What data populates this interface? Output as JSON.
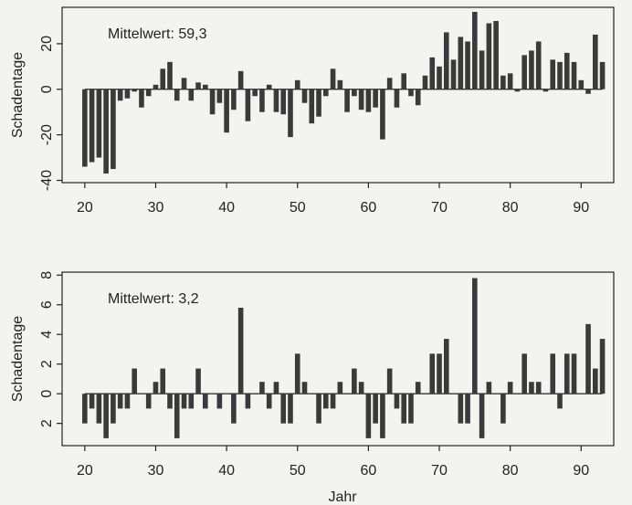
{
  "chart_data": [
    {
      "type": "bar",
      "annotation": "Mittelwert: 59,3",
      "ylabel": "Schadentage",
      "color": "#3a3a3a",
      "x": [
        20,
        21,
        22,
        23,
        24,
        25,
        26,
        27,
        28,
        29,
        30,
        31,
        32,
        33,
        34,
        35,
        36,
        37,
        38,
        39,
        40,
        41,
        42,
        43,
        44,
        45,
        46,
        47,
        48,
        49,
        50,
        51,
        52,
        53,
        54,
        55,
        56,
        57,
        58,
        59,
        60,
        61,
        62,
        63,
        64,
        65,
        66,
        67,
        68,
        69,
        70,
        71,
        72,
        73,
        74,
        75,
        76,
        77,
        78,
        79,
        80,
        81,
        82,
        83,
        84,
        85,
        86,
        87,
        88,
        89,
        90,
        91,
        92,
        93
      ],
      "values": [
        -34,
        -32,
        -30,
        -37,
        -35,
        -5,
        -4,
        -1,
        -8,
        -3,
        2,
        9,
        12,
        -5,
        5,
        -5,
        3,
        2,
        -11,
        -6,
        -19,
        -9,
        8,
        -14,
        -3,
        -10,
        2,
        -10,
        -11,
        -21,
        4,
        -6,
        -15,
        -12,
        -3,
        9,
        4,
        -10,
        -3,
        -9,
        -10,
        -8,
        -22,
        5,
        -8,
        7,
        -3,
        -7,
        6,
        14,
        10,
        25,
        13,
        23,
        21,
        34,
        17,
        29,
        30,
        6,
        7,
        -1,
        15,
        17,
        21,
        -1,
        13,
        12,
        16,
        12,
        4,
        -2,
        24,
        12
      ],
      "xlim": [
        16.8,
        94.6
      ],
      "xticks": [
        20,
        30,
        40,
        50,
        60,
        70,
        80,
        90
      ],
      "ylim": [
        -41,
        36
      ],
      "yticks": [
        -40,
        -20,
        0,
        20
      ]
    },
    {
      "type": "bar",
      "annotation": "Mittelwert: 3,2",
      "ylabel": "Schadentage",
      "xlabel": "Jahr",
      "color": "#3a3a3a",
      "x": [
        20,
        21,
        22,
        23,
        24,
        25,
        26,
        27,
        28,
        29,
        30,
        31,
        32,
        33,
        34,
        35,
        36,
        37,
        38,
        39,
        40,
        41,
        42,
        43,
        44,
        45,
        46,
        47,
        48,
        49,
        50,
        51,
        52,
        53,
        54,
        55,
        56,
        57,
        58,
        59,
        60,
        61,
        62,
        63,
        64,
        65,
        66,
        67,
        68,
        69,
        70,
        71,
        72,
        73,
        74,
        75,
        76,
        77,
        78,
        79,
        80,
        81,
        82,
        83,
        84,
        85,
        86,
        87,
        88,
        89,
        90,
        91,
        92,
        93
      ],
      "values": [
        -2,
        -1,
        -2,
        -3,
        -2,
        -1,
        -1,
        1.7,
        0,
        -1,
        0.8,
        1.7,
        -1,
        -3,
        -1,
        -1,
        1.7,
        -1,
        0,
        -1,
        0,
        -2,
        5.8,
        -1,
        0,
        0.8,
        -1,
        0.8,
        -2,
        -2,
        2.7,
        0.8,
        0,
        -2,
        -1,
        -1,
        0.8,
        0,
        1.7,
        0.8,
        -3,
        -2,
        -3,
        1.7,
        -1,
        -2,
        -2,
        0.8,
        0,
        2.7,
        2.7,
        3.7,
        0,
        -2,
        -2,
        7.8,
        -3,
        0.8,
        0,
        -2,
        0.8,
        0,
        2.7,
        0.8,
        0.8,
        0,
        2.7,
        -1,
        2.7,
        2.7,
        0,
        4.7,
        1.7,
        3.7
      ],
      "xlim": [
        16.8,
        94.6
      ],
      "xticks": [
        20,
        30,
        40,
        50,
        60,
        70,
        80,
        90
      ],
      "ylim": [
        -3.5,
        8.2
      ],
      "yticks": [
        {
          "value": -2,
          "label": "2"
        },
        0,
        2,
        4,
        6,
        8
      ]
    }
  ]
}
